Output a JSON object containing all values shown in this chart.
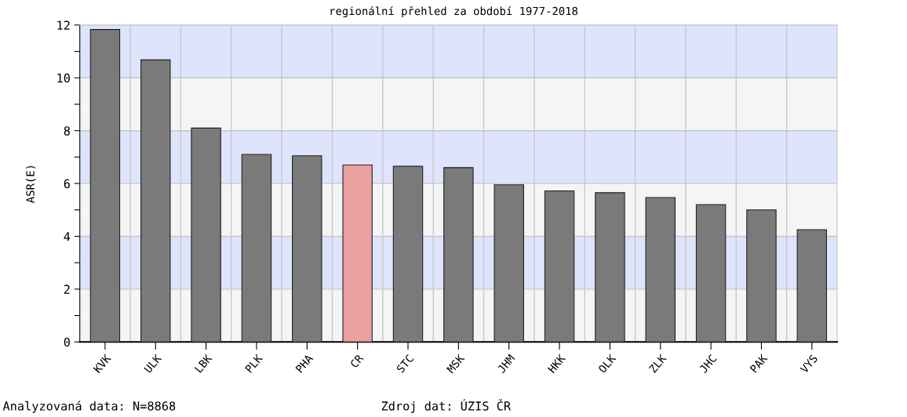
{
  "chart_data": {
    "type": "bar",
    "title": "regionální přehled za období 1977-2018",
    "ylabel": "ASR(E)",
    "categories": [
      "KVK",
      "ULK",
      "LBK",
      "PLK",
      "PHA",
      "CR",
      "STC",
      "MSK",
      "JHM",
      "HKK",
      "OLK",
      "ZLK",
      "JHC",
      "PAK",
      "VYS"
    ],
    "values": [
      11.83,
      10.68,
      8.1,
      7.1,
      7.05,
      6.7,
      6.65,
      6.6,
      5.95,
      5.72,
      5.65,
      5.47,
      5.2,
      5.0,
      4.25
    ],
    "colors": [
      "#7a7a7a",
      "#7a7a7a",
      "#7a7a7a",
      "#7a7a7a",
      "#7a7a7a",
      "#e8a0a0",
      "#7a7a7a",
      "#7a7a7a",
      "#7a7a7a",
      "#7a7a7a",
      "#7a7a7a",
      "#7a7a7a",
      "#7a7a7a",
      "#7a7a7a",
      "#7a7a7a"
    ],
    "ylim": [
      0,
      12
    ],
    "yticks": [
      0,
      {
        "value": 1,
        "label": null
      },
      2,
      {
        "value": 3,
        "label": null
      },
      4,
      {
        "value": 5,
        "label": null
      },
      6,
      {
        "value": 7,
        "label": null
      },
      8,
      {
        "value": 9,
        "label": null
      },
      10,
      {
        "value": 11,
        "label": null
      },
      12
    ],
    "grid": true,
    "bands": [
      {
        "axis": "y",
        "from": 0,
        "to": 2,
        "color": "#f5f5f5"
      },
      {
        "axis": "y",
        "from": 2,
        "to": 4,
        "color": "#dde4fc"
      },
      {
        "axis": "y",
        "from": 4,
        "to": 6,
        "color": "#f5f5f5"
      },
      {
        "axis": "y",
        "from": 6,
        "to": 8,
        "color": "#dde4fc"
      },
      {
        "axis": "y",
        "from": 8,
        "to": 10,
        "color": "#f5f5f5"
      },
      {
        "axis": "y",
        "from": 10,
        "to": 12,
        "color": "#dde4fc"
      }
    ],
    "annotations": [
      "Analyzovaná data: N=8868",
      "Zdroj dat: ÚZIS ČR"
    ]
  }
}
